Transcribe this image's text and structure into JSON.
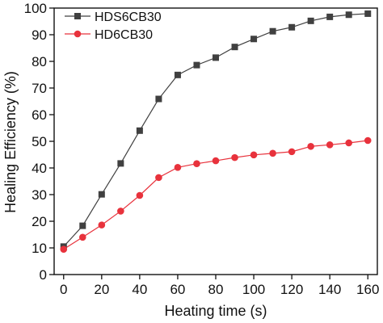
{
  "chart_data": {
    "type": "line",
    "xlabel": "Heating time (s)",
    "ylabel": "Healing Efficiency (%)",
    "xlim": [
      -5,
      165
    ],
    "ylim": [
      0,
      100
    ],
    "xticks": [
      0,
      20,
      40,
      60,
      80,
      100,
      120,
      140,
      160
    ],
    "yticks": [
      0,
      10,
      20,
      30,
      40,
      50,
      60,
      70,
      80,
      90,
      100
    ],
    "legend_position": "top-left",
    "grid": false,
    "x": [
      0,
      10,
      20,
      30,
      40,
      50,
      60,
      70,
      80,
      90,
      100,
      110,
      120,
      130,
      140,
      150,
      160
    ],
    "series": [
      {
        "name": "HDS6CB30",
        "marker": "square",
        "color": "#404040",
        "values": [
          10.5,
          18.3,
          30.1,
          41.7,
          54.0,
          65.9,
          74.9,
          78.6,
          81.4,
          85.4,
          88.4,
          91.3,
          92.8,
          95.2,
          96.7,
          97.5,
          97.9
        ]
      },
      {
        "name": "HD6CB30",
        "marker": "circle",
        "color": "#e8323c",
        "values": [
          9.5,
          14.0,
          18.6,
          23.8,
          29.7,
          36.4,
          40.2,
          41.6,
          42.7,
          43.9,
          44.9,
          45.5,
          46.1,
          48.1,
          48.7,
          49.4,
          50.3
        ]
      }
    ]
  }
}
